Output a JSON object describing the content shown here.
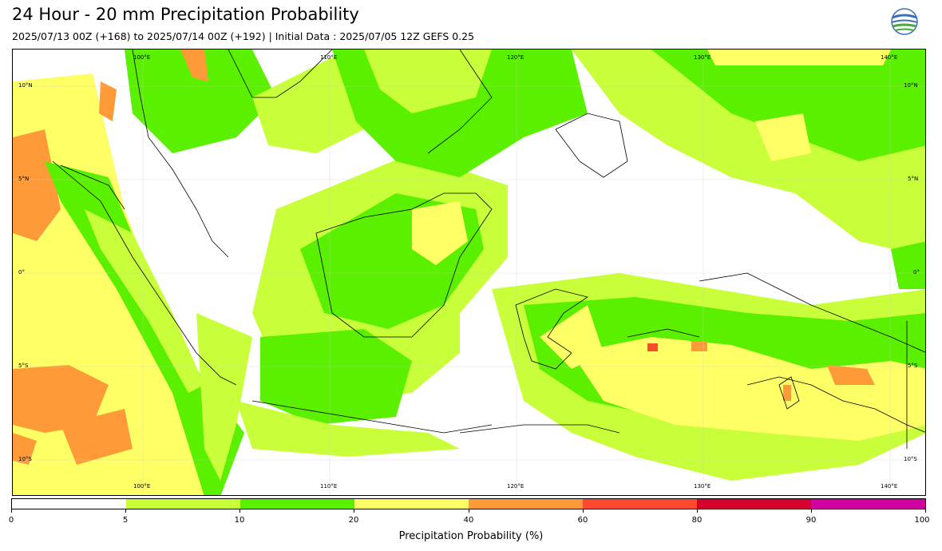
{
  "title": "24 Hour - 20 mm Precipitation Probability",
  "subtitle": "2025/07/13 00Z (+168) to 2025/07/14 00Z (+192) | Initial Data : 2025/07/05 12Z GEFS 0.25",
  "logo_text": "BMKG",
  "map": {
    "lon_labels": [
      "100°E",
      "110°E",
      "120°E",
      "130°E",
      "140°E"
    ],
    "lat_labels_left": [
      "10°N",
      "5°N",
      "0°",
      "5°S",
      "10°S"
    ],
    "lat_labels_right": [
      "10°N",
      "5°N",
      "0°",
      "5°S",
      "10°S"
    ]
  },
  "colorbar": {
    "label": "Precipitation Probability (%)",
    "ticks": [
      "0",
      "5",
      "10",
      "20",
      "40",
      "60",
      "80",
      "90",
      "100"
    ],
    "colors": [
      "#ffffff",
      "#c8ff3a",
      "#5af000",
      "#ffff66",
      "#ff9a38",
      "#ff4a30",
      "#d4002e",
      "#d000a0"
    ]
  }
}
